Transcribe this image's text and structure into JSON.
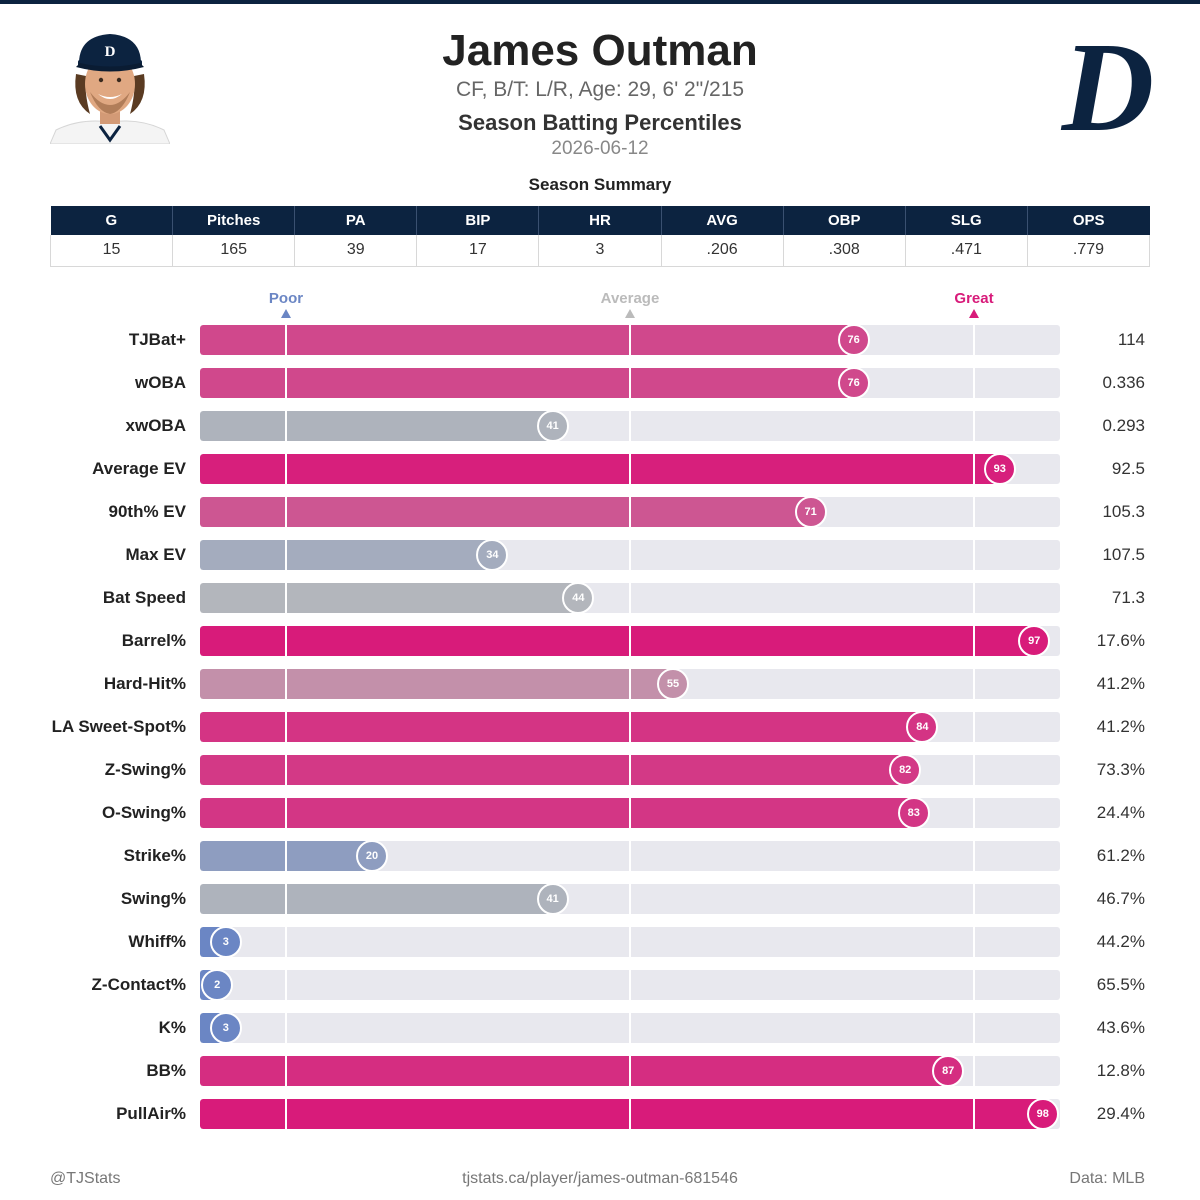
{
  "player": {
    "name": "James Outman",
    "bio": "CF, B/T: L/R, Age: 29, 6' 2\"/215"
  },
  "page": {
    "title": "Season Batting Percentiles",
    "date": "2026-06-12"
  },
  "summary": {
    "title": "Season Summary",
    "headers": [
      "G",
      "Pitches",
      "PA",
      "BIP",
      "HR",
      "AVG",
      "OBP",
      "SLG",
      "OPS"
    ],
    "values": [
      "15",
      "165",
      "39",
      "17",
      "3",
      ".206",
      ".308",
      ".471",
      ".779"
    ]
  },
  "scale": {
    "poor": "Poor",
    "average": "Average",
    "great": "Great"
  },
  "colors": {
    "navy": "#0c2340",
    "poor": "#6b86c4",
    "average": "#bbbbbb",
    "great": "#d81b7a"
  },
  "footer": {
    "left": "@TJStats",
    "center": "tjstats.ca/player/james-outman-681546",
    "right": "Data: MLB"
  },
  "logo": {
    "letter": "D"
  },
  "chart_data": {
    "type": "bar",
    "orientation": "horizontal",
    "xlim": [
      0,
      100
    ],
    "reference_lines": [
      10,
      50,
      90
    ],
    "categories": [
      "TJBat+",
      "wOBA",
      "xwOBA",
      "Average EV",
      "90th% EV",
      "Max EV",
      "Bat Speed",
      "Barrel%",
      "Hard-Hit%",
      "LA Sweet-Spot%",
      "Z-Swing%",
      "O-Swing%",
      "Strike%",
      "Swing%",
      "Whiff%",
      "Z-Contact%",
      "K%",
      "BB%",
      "PullAir%"
    ],
    "values": [
      76,
      76,
      41,
      93,
      71,
      34,
      44,
      97,
      55,
      84,
      82,
      83,
      20,
      41,
      3,
      2,
      3,
      87,
      98
    ],
    "stat_values": [
      "114",
      "0.336",
      "0.293",
      "92.5",
      "105.3",
      "107.5",
      "71.3",
      "17.6%",
      "41.2%",
      "41.2%",
      "73.3%",
      "24.4%",
      "61.2%",
      "46.7%",
      "44.2%",
      "65.5%",
      "43.6%",
      "12.8%",
      "29.4%"
    ]
  }
}
